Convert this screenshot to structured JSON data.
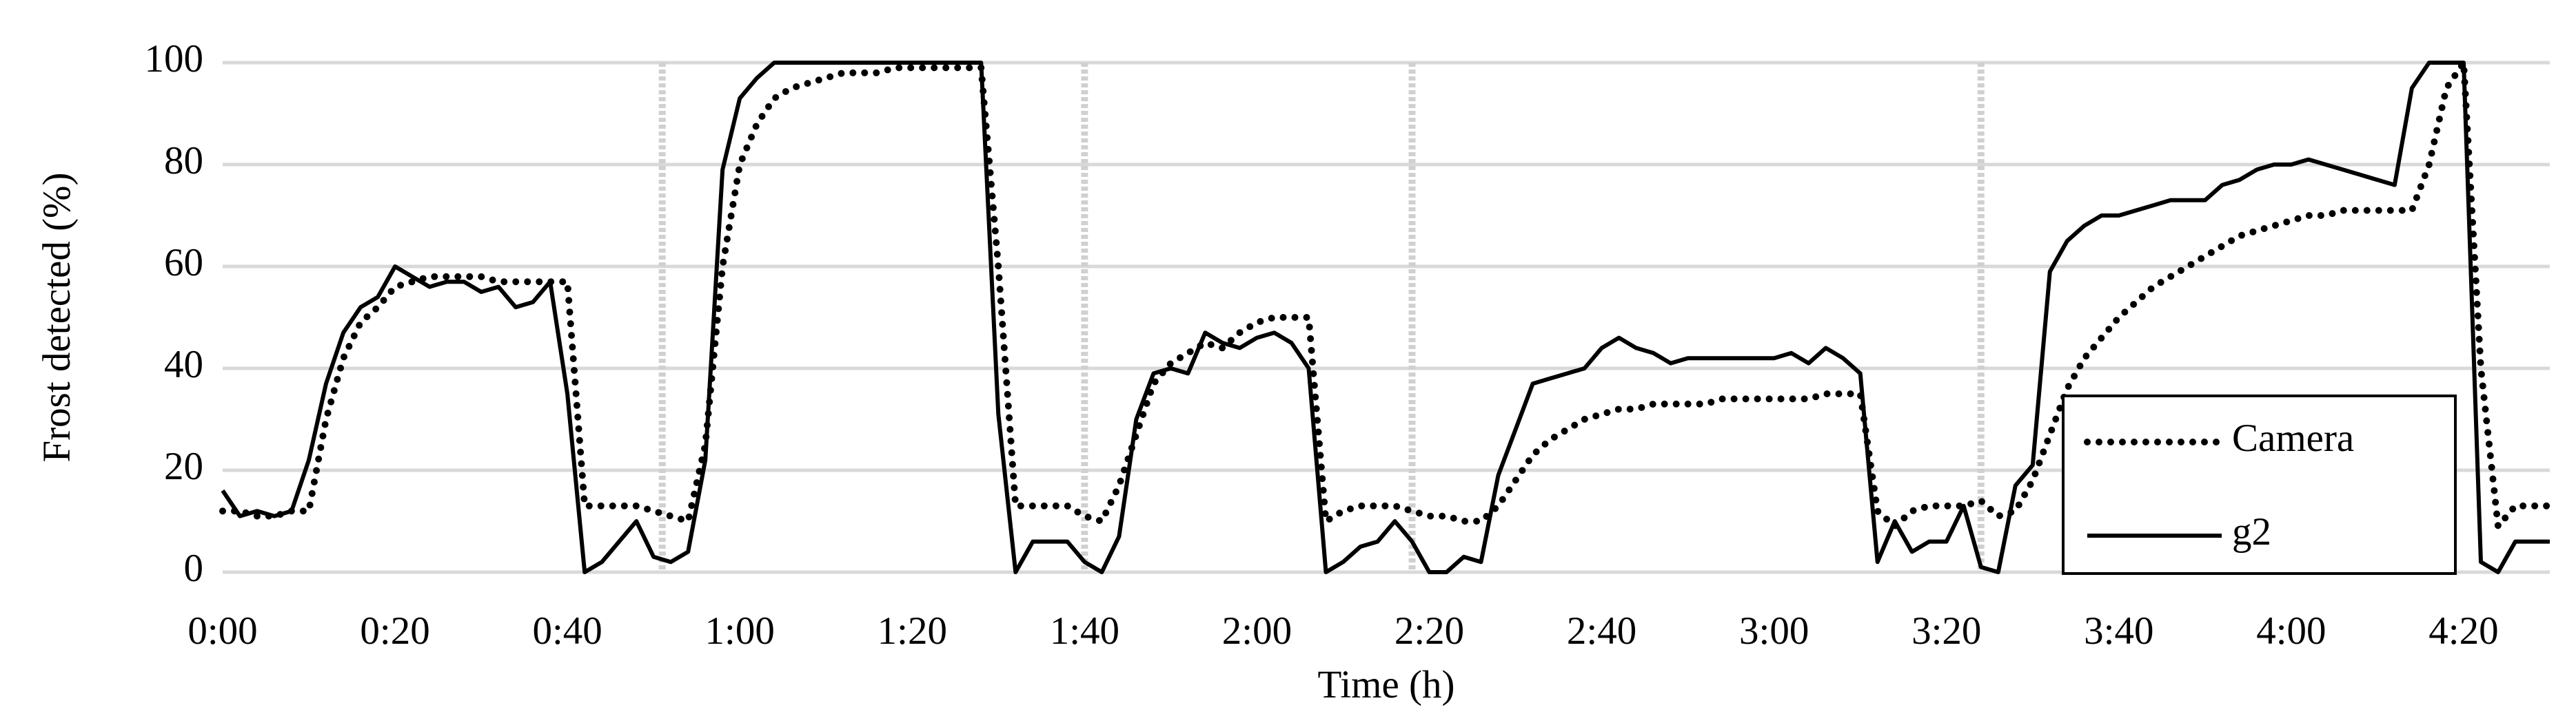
{
  "chart_data": {
    "type": "line",
    "x_label": "Time (h)",
    "y_label": "Frost detected (%)",
    "x": [
      0,
      2,
      4,
      6,
      8,
      10,
      12,
      14,
      16,
      18,
      20,
      22,
      24,
      26,
      28,
      30,
      32,
      34,
      36,
      38,
      40,
      42,
      44,
      46,
      48,
      50,
      52,
      54,
      56,
      58,
      60,
      62,
      64,
      66,
      68,
      70,
      72,
      74,
      76,
      78,
      80,
      82,
      84,
      86,
      88,
      90,
      92,
      94,
      96,
      98,
      100,
      102,
      104,
      106,
      108,
      110,
      112,
      114,
      116,
      118,
      120,
      122,
      124,
      126,
      128,
      130,
      132,
      134,
      136,
      138,
      140,
      142,
      144,
      146,
      148,
      150,
      152,
      154,
      156,
      158,
      160,
      162,
      164,
      166,
      168,
      170,
      172,
      174,
      176,
      178,
      180,
      182,
      184,
      186,
      188,
      190,
      192,
      194,
      196,
      198,
      200,
      202,
      204,
      206,
      208,
      210,
      212,
      214,
      216,
      218,
      220,
      222,
      224,
      226,
      228,
      230,
      232,
      234,
      236,
      238,
      240,
      242,
      244,
      246,
      248,
      250,
      252,
      254,
      256,
      258,
      260,
      262,
      264,
      266,
      268,
      270
    ],
    "series": [
      {
        "name": "Camera",
        "color": "#000000",
        "style": "dotted",
        "values": [
          12,
          12,
          11,
          11,
          12,
          12,
          30,
          42,
          49,
          52,
          56,
          57,
          58,
          58,
          58,
          58,
          57,
          57,
          57,
          57,
          57,
          13,
          13,
          13,
          13,
          12,
          11,
          10,
          25,
          60,
          80,
          88,
          93,
          95,
          96,
          97,
          98,
          98,
          98,
          99,
          99,
          99,
          99,
          99,
          99,
          60,
          13,
          13,
          13,
          13,
          11,
          10,
          17,
          27,
          37,
          41,
          43,
          45,
          44,
          47,
          49,
          50,
          50,
          50,
          10,
          12,
          13,
          13,
          13,
          12,
          11,
          11,
          10,
          10,
          13,
          18,
          23,
          26,
          28,
          30,
          31,
          32,
          32,
          33,
          33,
          33,
          33,
          34,
          34,
          34,
          34,
          34,
          34,
          35,
          35,
          35,
          12,
          9,
          12,
          13,
          13,
          13,
          14,
          11,
          12,
          18,
          27,
          36,
          42,
          46,
          50,
          53,
          56,
          58,
          60,
          62,
          64,
          66,
          67,
          68,
          69,
          70,
          70,
          71,
          71,
          71,
          71,
          71,
          80,
          95,
          100,
          40,
          9,
          13,
          13,
          13
        ]
      },
      {
        "name": "g2",
        "color": "#000000",
        "style": "solid",
        "values": [
          16,
          11,
          12,
          11,
          12,
          22,
          37,
          47,
          52,
          54,
          60,
          58,
          56,
          57,
          57,
          55,
          56,
          52,
          53,
          57,
          35,
          0,
          2,
          6,
          10,
          3,
          2,
          4,
          22,
          79,
          93,
          97,
          100,
          100,
          100,
          100,
          100,
          100,
          100,
          100,
          100,
          100,
          100,
          100,
          100,
          31,
          0,
          6,
          6,
          6,
          2,
          0,
          7,
          30,
          39,
          40,
          39,
          47,
          45,
          44,
          46,
          47,
          45,
          40,
          0,
          2,
          5,
          6,
          10,
          6,
          0,
          0,
          3,
          2,
          19,
          28,
          37,
          38,
          39,
          40,
          44,
          46,
          44,
          43,
          41,
          42,
          42,
          42,
          42,
          42,
          42,
          43,
          41,
          44,
          42,
          39,
          2,
          10,
          4,
          6,
          6,
          13,
          1,
          0,
          17,
          21,
          59,
          65,
          68,
          70,
          70,
          71,
          72,
          73,
          73,
          73,
          76,
          77,
          79,
          80,
          80,
          81,
          80,
          79,
          78,
          77,
          76,
          95,
          100,
          100,
          100,
          2,
          0,
          6,
          6,
          6
        ]
      }
    ],
    "vlines": [
      51,
      100,
      138,
      204
    ],
    "xlim": [
      0,
      270
    ],
    "xticks": [
      {
        "value": 0,
        "label": "0:00"
      },
      {
        "value": 20,
        "label": "0:20"
      },
      {
        "value": 40,
        "label": "0:40"
      },
      {
        "value": 60,
        "label": "1:00"
      },
      {
        "value": 80,
        "label": "1:20"
      },
      {
        "value": 100,
        "label": "1:40"
      },
      {
        "value": 120,
        "label": "2:00"
      },
      {
        "value": 140,
        "label": "2:20"
      },
      {
        "value": 160,
        "label": "2:40"
      },
      {
        "value": 180,
        "label": "3:00"
      },
      {
        "value": 200,
        "label": "3:20"
      },
      {
        "value": 220,
        "label": "3:40"
      },
      {
        "value": 240,
        "label": "4:00"
      },
      {
        "value": 260,
        "label": "4:20"
      }
    ],
    "ylim": [
      0,
      100
    ],
    "yticks": [
      0,
      20,
      40,
      60,
      80,
      100
    ],
    "grid": true,
    "legend": "lower right"
  }
}
